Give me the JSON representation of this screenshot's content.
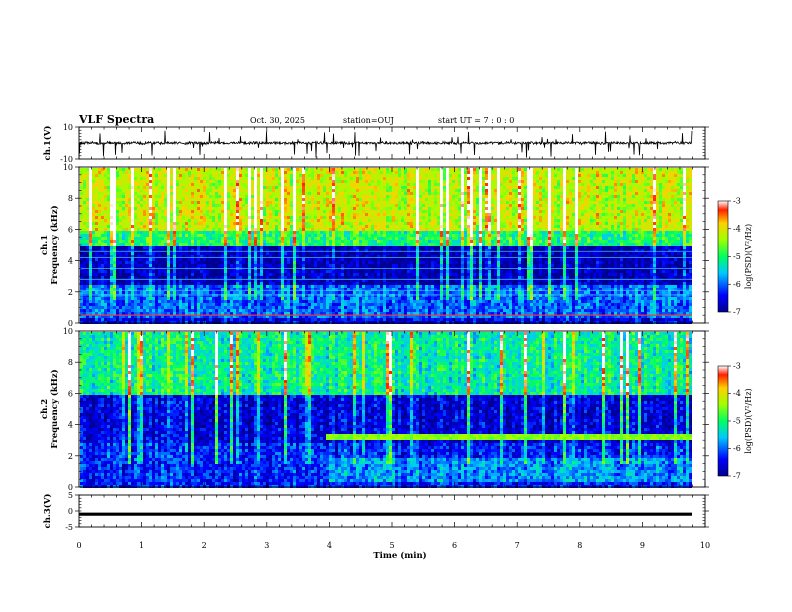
{
  "header": {
    "title": "VLF Spectra",
    "date": "Oct. 30, 2025",
    "station": "station=OUJ",
    "start_time": "start UT =  7 : 0 : 0"
  },
  "chart_data": [
    {
      "id": "ch1-waveform",
      "type": "line",
      "ylabel": "ch.1(V)",
      "ylim": [
        -10,
        10
      ],
      "yticks": [
        "10",
        "-10"
      ],
      "baseline": 0,
      "noise_level": "low with frequent spikes"
    },
    {
      "id": "ch1-spectrogram",
      "type": "heatmap",
      "ylabel": "ch.1\nFrequency (kHz)",
      "ylim": [
        0,
        10
      ],
      "yticks": [
        "0",
        "2",
        "4",
        "6",
        "8",
        "10"
      ],
      "colorbar": {
        "label": "log(PSD)(V²/Hz)",
        "range": [
          -7,
          -3
        ],
        "ticks": [
          "-3",
          "-4",
          "-5",
          "-6",
          "-7"
        ]
      },
      "bands": [
        {
          "from_khz": 0,
          "to_khz": 0.5,
          "log_psd": -6.5
        },
        {
          "from_khz": 0.5,
          "to_khz": 2.5,
          "log_psd": -6.0
        },
        {
          "from_khz": 2.5,
          "to_khz": 5.0,
          "log_psd": -6.8
        },
        {
          "from_khz": 5.0,
          "to_khz": 6.0,
          "log_psd": -5.0
        },
        {
          "from_khz": 6.0,
          "to_khz": 10.0,
          "log_psd": -4.2
        }
      ],
      "spheric_lines_kHz": [
        0.5,
        1.8,
        2.1,
        2.8,
        3.5,
        4.2,
        4.6
      ]
    },
    {
      "id": "ch2-spectrogram",
      "type": "heatmap",
      "ylabel": "ch.2\nFrequency (kHz)",
      "ylim": [
        0,
        10
      ],
      "yticks": [
        "0",
        "2",
        "4",
        "6",
        "8",
        "10"
      ],
      "colorbar": {
        "label": "log(PSD)(V²/Hz)",
        "range": [
          -7,
          -3
        ],
        "ticks": [
          "-3",
          "-4",
          "-5",
          "-6",
          "-7"
        ]
      },
      "bands": [
        {
          "from_khz": 0,
          "to_khz": 3.0,
          "log_psd": -6.3
        },
        {
          "from_khz": 3.0,
          "to_khz": 6.0,
          "log_psd": -6.6
        },
        {
          "from_khz": 6.0,
          "to_khz": 10.0,
          "log_psd": -5.2
        }
      ],
      "emission_band": {
        "from_min": 3.9,
        "to_min": 9.85,
        "freq_khz": 3.3,
        "log_psd": -5.3
      }
    },
    {
      "id": "ch3-waveform",
      "type": "line",
      "ylabel": "ch.3(V)",
      "ylim": [
        -5,
        5
      ],
      "yticks": [
        "5",
        "0",
        "-5"
      ],
      "constant_value": -1.0
    }
  ],
  "x_axis": {
    "label": "Time (min)",
    "range": [
      0,
      10
    ],
    "data_end": 9.85,
    "ticks": [
      "0",
      "1",
      "2",
      "3",
      "4",
      "5",
      "6",
      "7",
      "8",
      "9",
      "10"
    ]
  }
}
